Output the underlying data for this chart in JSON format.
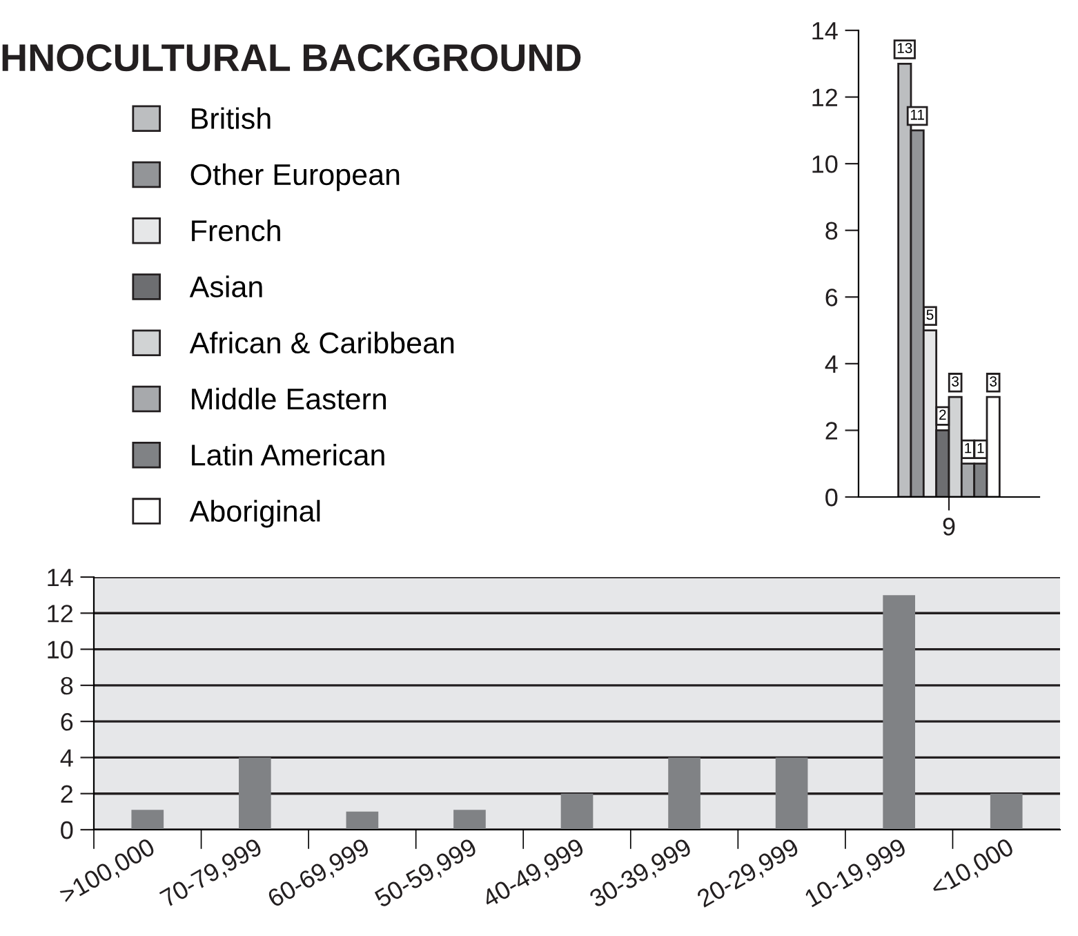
{
  "chart_data": [
    {
      "type": "bar",
      "legend_title": "HNOCULTURAL BACKGROUND",
      "categories": [
        "9"
      ],
      "ylim": [
        0,
        14
      ],
      "yticks": [
        0,
        2,
        4,
        6,
        8,
        10,
        12,
        14
      ],
      "data_labels": true,
      "legend": "left",
      "grid": false,
      "series": [
        {
          "name": "British",
          "color": "#bcbec0",
          "values": [
            13
          ]
        },
        {
          "name": "Other European",
          "color": "#939598",
          "values": [
            11
          ]
        },
        {
          "name": "French",
          "color": "#e6e7e8",
          "values": [
            5
          ]
        },
        {
          "name": "Asian",
          "color": "#6d6e71",
          "values": [
            2
          ]
        },
        {
          "name": "African & Caribbean",
          "color": "#d1d3d4",
          "values": [
            3
          ]
        },
        {
          "name": "Middle Eastern",
          "color": "#a7a9ac",
          "values": [
            1
          ]
        },
        {
          "name": "Latin American",
          "color": "#808285",
          "values": [
            1
          ]
        },
        {
          "name": "Aboriginal",
          "color": "#ffffff",
          "values": [
            3
          ]
        }
      ]
    },
    {
      "type": "bar",
      "categories": [
        ">100,000",
        "70-79,999",
        "60-69,999",
        "50-59,999",
        "40-49,999",
        "30-39,999",
        "20-29,999",
        "10-19,999",
        "<10,000"
      ],
      "values": [
        1.1,
        4,
        1,
        1.1,
        2,
        4,
        4,
        13,
        2
      ],
      "color": "#808285",
      "ylim": [
        0,
        14
      ],
      "yticks": [
        0,
        2,
        4,
        6,
        8,
        10,
        12,
        14
      ],
      "grid": "y",
      "legend": false
    }
  ]
}
